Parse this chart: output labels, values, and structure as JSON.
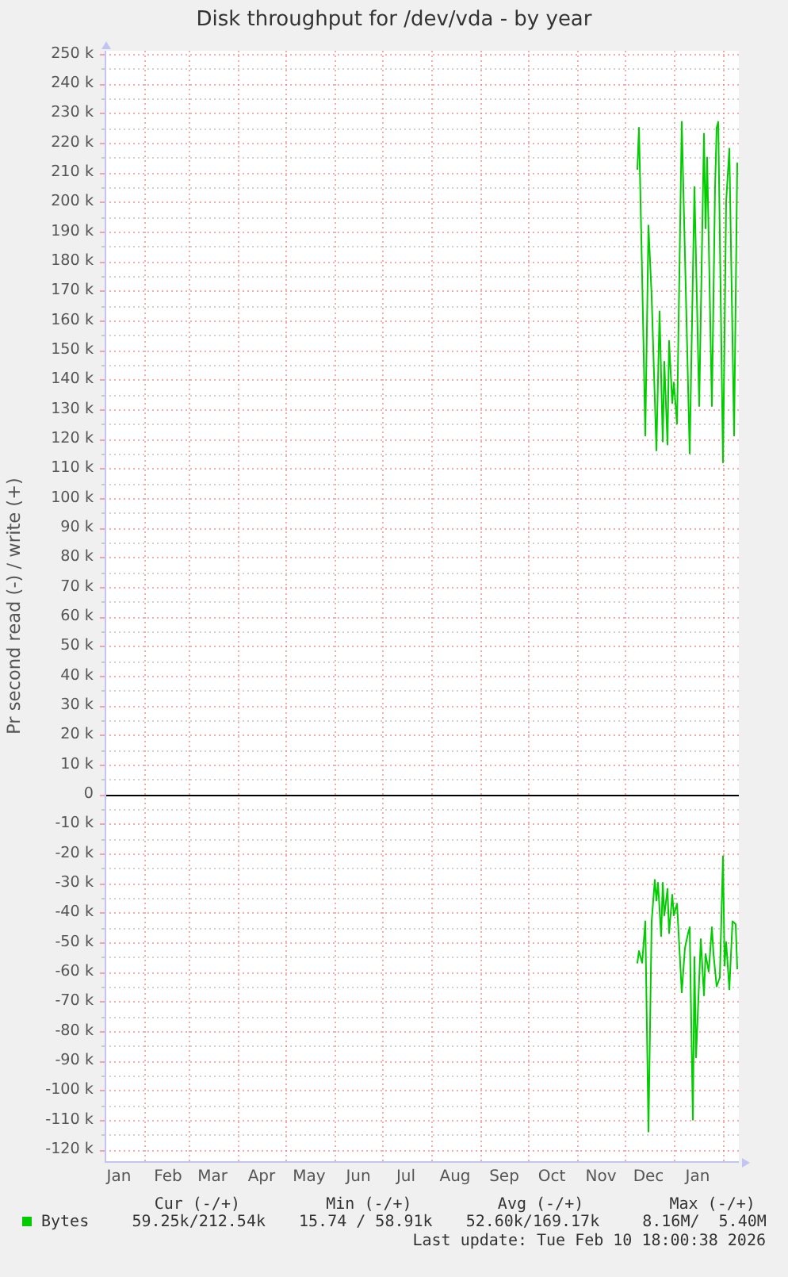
{
  "chart_data": {
    "type": "line",
    "title": "Disk throughput for /dev/vda - by year",
    "ylabel": "Pr second read (-) / write (+)",
    "series": [
      {
        "name": "Bytes",
        "color": "#00cc00",
        "x": [
          "2025-12-09",
          "2025-12-10",
          "2025-12-12",
          "2025-12-14",
          "2025-12-16",
          "2025-12-18",
          "2025-12-21",
          "2025-12-23",
          "2025-12-25",
          "2025-12-26",
          "2025-12-28",
          "2025-12-29",
          "2025-12-31",
          "2026-01-01",
          "2026-01-03",
          "2026-01-06",
          "2026-01-11",
          "2026-01-14",
          "2026-01-17",
          "2026-01-20",
          "2026-01-21",
          "2026-01-22",
          "2026-01-25",
          "2026-01-27",
          "2026-01-28",
          "2026-01-29",
          "2026-02-01",
          "2026-02-03",
          "2026-02-05",
          "2026-02-08",
          "2026-02-10"
        ],
        "values": [
          211000,
          225000,
          175000,
          121000,
          192000,
          168000,
          116000,
          163000,
          119000,
          146000,
          118000,
          153000,
          132000,
          139000,
          125000,
          227000,
          115000,
          205000,
          131000,
          223000,
          191000,
          215000,
          131000,
          205000,
          225000,
          227000,
          112000,
          200000,
          218000,
          121000,
          213000
        ]
      },
      {
        "color": "#00cc00",
        "x": [
          "2025-12-09",
          "2025-12-10",
          "2025-12-12",
          "2025-12-14",
          "2025-12-16",
          "2025-12-18",
          "2025-12-20",
          "2025-12-21",
          "2025-12-22",
          "2025-12-24",
          "2025-12-25",
          "2025-12-26",
          "2025-12-28",
          "2025-12-29",
          "2025-12-31",
          "2026-01-01",
          "2026-01-03",
          "2026-01-06",
          "2026-01-08",
          "2026-01-10",
          "2026-01-11",
          "2026-01-13",
          "2026-01-14",
          "2026-01-15",
          "2026-01-18",
          "2026-01-20",
          "2026-01-21",
          "2026-01-23",
          "2026-01-25",
          "2026-01-26",
          "2026-01-28",
          "2026-01-30",
          "2026-02-01",
          "2026-02-02",
          "2026-02-03",
          "2026-02-05",
          "2026-02-07",
          "2026-02-09",
          "2026-02-10"
        ],
        "values": [
          -57000,
          -53000,
          -57000,
          -43000,
          -114000,
          -43000,
          -29000,
          -36000,
          -30000,
          -48000,
          -30000,
          -41000,
          -32000,
          -47000,
          -34000,
          -41000,
          -37000,
          -67000,
          -52000,
          -47000,
          -45000,
          -110000,
          -55000,
          -89000,
          -49000,
          -68000,
          -54000,
          -60000,
          -45000,
          -54000,
          -65000,
          -62000,
          -21000,
          -58000,
          -50000,
          -66000,
          -43000,
          -44000,
          -59000
        ]
      }
    ],
    "xlim": [
      "2025-01-07",
      "2026-02-11"
    ],
    "xticks": [
      {
        "value": "2025-01-16",
        "label": "Jan"
      },
      {
        "value": "2025-02-01",
        "label": null
      },
      {
        "value": "2025-02-16",
        "label": "Feb"
      },
      {
        "value": "2025-03-01",
        "label": null
      },
      {
        "value": "2025-03-16",
        "label": "Mar"
      },
      {
        "value": "2025-04-01",
        "label": null
      },
      {
        "value": "2025-04-16",
        "label": "Apr"
      },
      {
        "value": "2025-05-01",
        "label": null
      },
      {
        "value": "2025-05-16",
        "label": "May"
      },
      {
        "value": "2025-06-01",
        "label": null
      },
      {
        "value": "2025-06-16",
        "label": "Jun"
      },
      {
        "value": "2025-07-01",
        "label": null
      },
      {
        "value": "2025-07-16",
        "label": "Jul"
      },
      {
        "value": "2025-08-01",
        "label": null
      },
      {
        "value": "2025-08-16",
        "label": "Aug"
      },
      {
        "value": "2025-09-01",
        "label": null
      },
      {
        "value": "2025-09-16",
        "label": "Sep"
      },
      {
        "value": "2025-10-01",
        "label": null
      },
      {
        "value": "2025-10-16",
        "label": "Oct"
      },
      {
        "value": "2025-11-01",
        "label": null
      },
      {
        "value": "2025-11-16",
        "label": "Nov"
      },
      {
        "value": "2025-12-01",
        "label": null
      },
      {
        "value": "2025-12-16",
        "label": "Dec"
      },
      {
        "value": "2026-01-01",
        "label": null
      },
      {
        "value": "2026-01-16",
        "label": "Jan"
      },
      {
        "value": "2026-02-01",
        "label": null
      }
    ],
    "ylim": [
      -124000,
      251000
    ],
    "yticks": [
      {
        "value": -120000,
        "label": "-120 k"
      },
      {
        "value": -115000,
        "label": null
      },
      {
        "value": -110000,
        "label": "-110 k"
      },
      {
        "value": -105000,
        "label": null
      },
      {
        "value": -100000,
        "label": "-100 k"
      },
      {
        "value": -95000,
        "label": null
      },
      {
        "value": -90000,
        "label": "-90 k"
      },
      {
        "value": -85000,
        "label": null
      },
      {
        "value": -80000,
        "label": "-80 k"
      },
      {
        "value": -75000,
        "label": null
      },
      {
        "value": -70000,
        "label": "-70 k"
      },
      {
        "value": -65000,
        "label": null
      },
      {
        "value": -60000,
        "label": "-60 k"
      },
      {
        "value": -55000,
        "label": null
      },
      {
        "value": -50000,
        "label": "-50 k"
      },
      {
        "value": -45000,
        "label": null
      },
      {
        "value": -40000,
        "label": "-40 k"
      },
      {
        "value": -35000,
        "label": null
      },
      {
        "value": -30000,
        "label": "-30 k"
      },
      {
        "value": -25000,
        "label": null
      },
      {
        "value": -20000,
        "label": "-20 k"
      },
      {
        "value": -15000,
        "label": null
      },
      {
        "value": -10000,
        "label": "-10 k"
      },
      {
        "value": -5000,
        "label": null
      },
      0,
      {
        "value": 5000,
        "label": null
      },
      {
        "value": 10000,
        "label": "10 k"
      },
      {
        "value": 15000,
        "label": null
      },
      {
        "value": 20000,
        "label": "20 k"
      },
      {
        "value": 25000,
        "label": null
      },
      {
        "value": 30000,
        "label": "30 k"
      },
      {
        "value": 35000,
        "label": null
      },
      {
        "value": 40000,
        "label": "40 k"
      },
      {
        "value": 45000,
        "label": null
      },
      {
        "value": 50000,
        "label": "50 k"
      },
      {
        "value": 55000,
        "label": null
      },
      {
        "value": 60000,
        "label": "60 k"
      },
      {
        "value": 65000,
        "label": null
      },
      {
        "value": 70000,
        "label": "70 k"
      },
      {
        "value": 75000,
        "label": null
      },
      {
        "value": 80000,
        "label": "80 k"
      },
      {
        "value": 85000,
        "label": null
      },
      {
        "value": 90000,
        "label": "90 k"
      },
      {
        "value": 95000,
        "label": null
      },
      {
        "value": 100000,
        "label": "100 k"
      },
      {
        "value": 105000,
        "label": null
      },
      {
        "value": 110000,
        "label": "110 k"
      },
      {
        "value": 115000,
        "label": null
      },
      {
        "value": 120000,
        "label": "120 k"
      },
      {
        "value": 125000,
        "label": null
      },
      {
        "value": 130000,
        "label": "130 k"
      },
      {
        "value": 135000,
        "label": null
      },
      {
        "value": 140000,
        "label": "140 k"
      },
      {
        "value": 145000,
        "label": null
      },
      {
        "value": 150000,
        "label": "150 k"
      },
      {
        "value": 155000,
        "label": null
      },
      {
        "value": 160000,
        "label": "160 k"
      },
      {
        "value": 165000,
        "label": null
      },
      {
        "value": 170000,
        "label": "170 k"
      },
      {
        "value": 175000,
        "label": null
      },
      {
        "value": 180000,
        "label": "180 k"
      },
      {
        "value": 185000,
        "label": null
      },
      {
        "value": 190000,
        "label": "190 k"
      },
      {
        "value": 195000,
        "label": null
      },
      {
        "value": 200000,
        "label": "200 k"
      },
      {
        "value": 205000,
        "label": null
      },
      {
        "value": 210000,
        "label": "210 k"
      },
      {
        "value": 215000,
        "label": null
      },
      {
        "value": 220000,
        "label": "220 k"
      },
      {
        "value": 225000,
        "label": null
      },
      {
        "value": 230000,
        "label": "230 k"
      },
      {
        "value": 235000,
        "label": null
      },
      {
        "value": 240000,
        "label": "240 k"
      },
      {
        "value": 245000,
        "label": null
      },
      {
        "value": 250000,
        "label": "250 k"
      }
    ],
    "grid": true,
    "legend": "bottom left",
    "marker": "none",
    "ref_lines": [
      {
        "axis": "y",
        "value": 0,
        "color": "#000000"
      }
    ],
    "annotations": [
      "Cur (-/+)",
      "Min (-/+)",
      "Avg (-/+)",
      "Max (-/+)",
      "59.25k/212.54k",
      "15.74 / 58.91k",
      "52.60k/169.17k",
      "8.16M/  5.40M",
      "Last update: Tue Feb 10 18:00:38 2026"
    ]
  }
}
